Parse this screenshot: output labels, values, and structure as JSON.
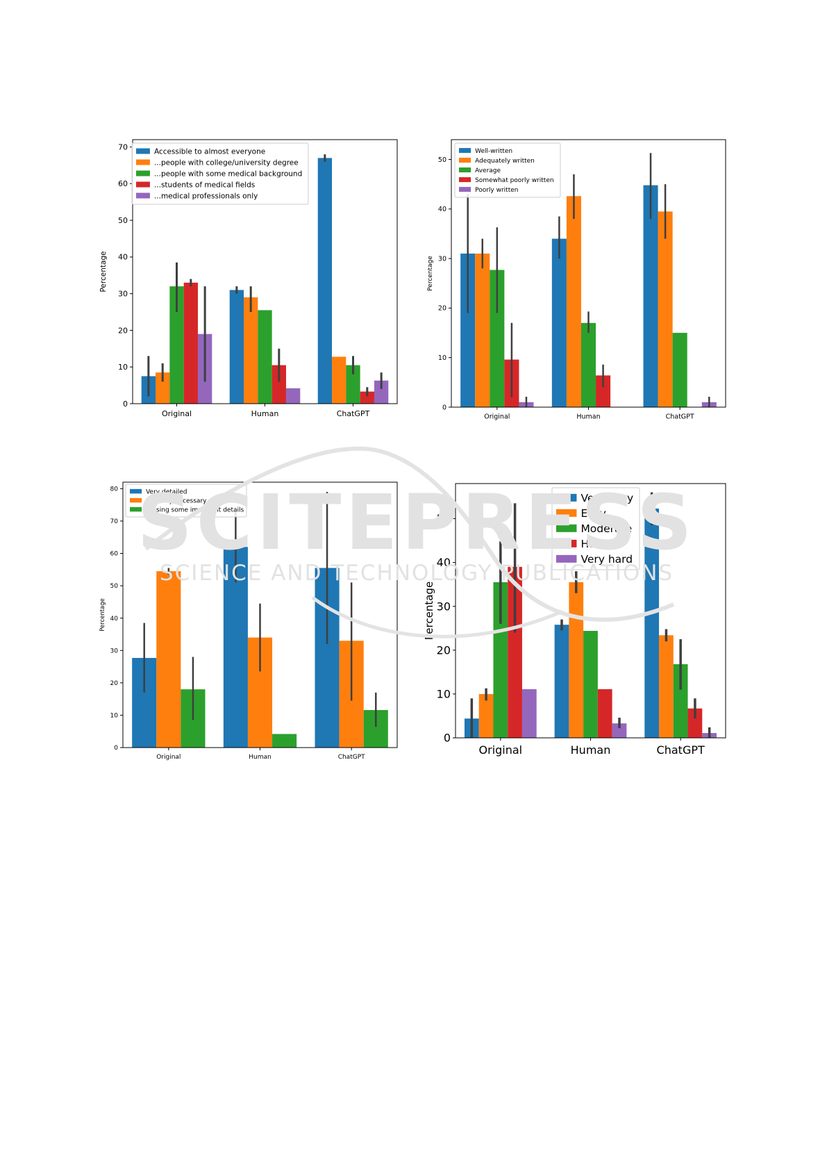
{
  "page": {
    "background": "#ffffff"
  },
  "watermark": {
    "line1": "SCITEPRESS",
    "line2": "SCIENCE AND TECHNOLOGY PUBLICATIONS",
    "color": "#d9d9d9"
  },
  "palette": [
    "#1f77b4",
    "#ff7f0e",
    "#2ca02c",
    "#d62728",
    "#9467bd"
  ],
  "chart_data": [
    {
      "id": "chart-top-left",
      "type": "bar",
      "ylabel": "Percentage",
      "ylim": [
        0,
        72
      ],
      "yticks": [
        0,
        10,
        20,
        30,
        40,
        50,
        60,
        70
      ],
      "categories": [
        "Original",
        "Human",
        "ChatGPT"
      ],
      "legend_position": "top-left",
      "series": [
        {
          "name": "Accessible to almost everyone",
          "values": [
            7.5,
            31,
            67
          ],
          "err_low": [
            2,
            30,
            66
          ],
          "err_high": [
            13,
            32,
            68
          ]
        },
        {
          "name": "...people with college/university degree",
          "values": [
            8.5,
            29,
            12.8
          ],
          "err_low": [
            6,
            25,
            12.8
          ],
          "err_high": [
            11,
            32,
            12.8
          ]
        },
        {
          "name": "...people with some medical background",
          "values": [
            32,
            25.5,
            10.5
          ],
          "err_low": [
            25,
            25.5,
            8
          ],
          "err_high": [
            38.5,
            25.5,
            13
          ]
        },
        {
          "name": "...students of medical fields",
          "values": [
            33,
            10.5,
            3.3
          ],
          "err_low": [
            32,
            6,
            2
          ],
          "err_high": [
            34,
            15,
            4.5
          ]
        },
        {
          "name": "...medical professionals only",
          "values": [
            19,
            4.2,
            6.3
          ],
          "err_low": [
            6,
            4.2,
            4
          ],
          "err_high": [
            32,
            4.2,
            8.5
          ]
        }
      ]
    },
    {
      "id": "chart-top-right",
      "type": "bar",
      "ylabel": "Percentage",
      "ylim": [
        0,
        54
      ],
      "yticks": [
        0,
        10,
        20,
        30,
        40,
        50
      ],
      "categories": [
        "Original",
        "Human",
        "ChatGPT"
      ],
      "legend_position": "top-left",
      "series": [
        {
          "name": "Well-written",
          "values": [
            31,
            34,
            44.8
          ],
          "err_low": [
            19,
            30,
            38
          ],
          "err_high": [
            43,
            38.5,
            51.3
          ]
        },
        {
          "name": "Adequately written",
          "values": [
            31,
            42.6,
            39.5
          ],
          "err_low": [
            28,
            38,
            34
          ],
          "err_high": [
            34,
            47,
            45
          ]
        },
        {
          "name": "Average",
          "values": [
            27.7,
            17,
            15
          ],
          "err_low": [
            19,
            15,
            15
          ],
          "err_high": [
            36.3,
            19.3,
            15
          ]
        },
        {
          "name": "Somewhat poorly written",
          "values": [
            9.6,
            6.4,
            0
          ],
          "err_low": [
            2,
            4,
            0
          ],
          "err_high": [
            17,
            8.6,
            0
          ]
        },
        {
          "name": "Poorly written",
          "values": [
            1,
            0,
            1
          ],
          "err_low": [
            0,
            0,
            0
          ],
          "err_high": [
            2.1,
            0,
            2.1
          ]
        }
      ]
    },
    {
      "id": "chart-bottom-left",
      "type": "bar",
      "ylabel": "Percentage",
      "ylim": [
        0,
        82
      ],
      "yticks": [
        0,
        10,
        20,
        30,
        40,
        50,
        60,
        70,
        80
      ],
      "categories": [
        "Original",
        "Human",
        "ChatGPT"
      ],
      "legend_position": "top-left",
      "series": [
        {
          "name": "Very detailed",
          "values": [
            27.7,
            62,
            55.5
          ],
          "err_low": [
            17,
            51,
            32
          ],
          "err_high": [
            38.5,
            73,
            79
          ]
        },
        {
          "name": "Has only necessary details",
          "values": [
            54.5,
            34,
            33
          ],
          "err_low": [
            53.5,
            23.5,
            14.5
          ],
          "err_high": [
            55.5,
            44.5,
            51
          ]
        },
        {
          "name": "Missing some important details",
          "values": [
            18,
            4.2,
            11.6
          ],
          "err_low": [
            8.5,
            4.2,
            6.4
          ],
          "err_high": [
            28,
            4.2,
            17
          ]
        }
      ]
    },
    {
      "id": "chart-bottom-right",
      "type": "bar",
      "ylabel": "Percentage",
      "ylim": [
        0,
        58
      ],
      "yticks": [
        0,
        10,
        20,
        30,
        40,
        50
      ],
      "categories": [
        "Original",
        "Human",
        "ChatGPT"
      ],
      "legend_position": "top-center",
      "series": [
        {
          "name": "Very easy",
          "values": [
            4.4,
            25.8,
            52.3
          ],
          "err_low": [
            0,
            24.5,
            48.5
          ],
          "err_high": [
            9,
            27,
            56
          ]
        },
        {
          "name": "Easy",
          "values": [
            10,
            35.5,
            23.4
          ],
          "err_low": [
            8.5,
            33,
            22
          ],
          "err_high": [
            11.3,
            38,
            24.8
          ]
        },
        {
          "name": "Moderate",
          "values": [
            35.5,
            24.4,
            16.8
          ],
          "err_low": [
            26,
            24.4,
            11
          ],
          "err_high": [
            44.8,
            24.4,
            22.5
          ]
        },
        {
          "name": "Hard",
          "values": [
            39,
            11.1,
            6.7
          ],
          "err_low": [
            24,
            11.1,
            4.4
          ],
          "err_high": [
            53.5,
            11.1,
            9
          ]
        },
        {
          "name": "Very hard",
          "values": [
            11.1,
            3.3,
            1.1
          ],
          "err_low": [
            11.1,
            2.2,
            0
          ],
          "err_high": [
            11.1,
            4.6,
            2.4
          ]
        }
      ]
    }
  ]
}
